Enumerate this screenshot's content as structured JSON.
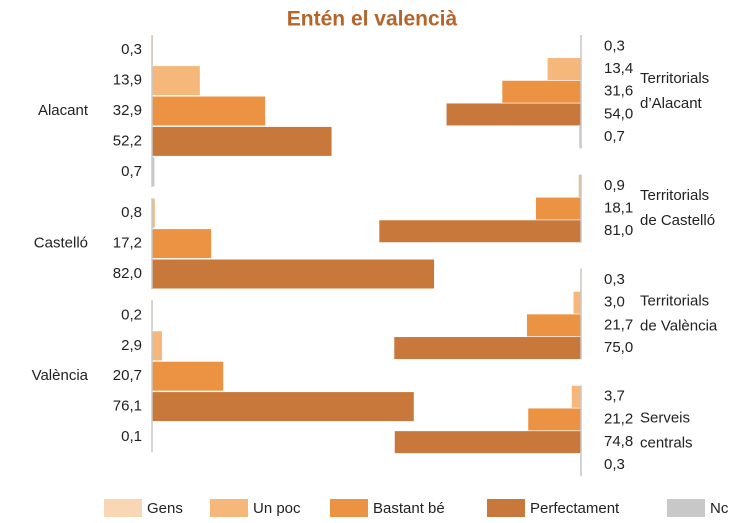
{
  "chart_data": [
    {
      "type": "bar",
      "title": "Entén el valencià",
      "categories": [
        [
          "Alacant"
        ],
        [
          "Castelló"
        ],
        [
          "València"
        ]
      ],
      "series": [
        {
          "name": "Gens",
          "color": "#f9d6b4",
          "values": [
            0.3,
            null,
            0.2
          ],
          "value_labels": [
            "0,3",
            null,
            "0,2"
          ]
        },
        {
          "name": "Un poc",
          "color": "#f5b77a",
          "values": [
            13.9,
            0.8,
            2.9
          ],
          "value_labels": [
            "13,9",
            "0,8",
            "2,9"
          ]
        },
        {
          "name": "Bastant bé",
          "color": "#ec9343",
          "values": [
            32.9,
            17.2,
            20.7
          ],
          "value_labels": [
            "32,9",
            "17,2",
            "20,7"
          ]
        },
        {
          "name": "Perfectament",
          "color": "#c8783a",
          "values": [
            52.2,
            82.0,
            76.1
          ],
          "value_labels": [
            "52,2",
            "82,0",
            "76,1"
          ]
        },
        {
          "name": "Nc",
          "color": "#c8c8c8",
          "values": [
            0.7,
            null,
            0.1
          ],
          "value_labels": [
            "0,7",
            null,
            "0,1"
          ]
        }
      ]
    },
    {
      "type": "bar",
      "categories": [
        [
          "Territorials",
          "d’Alacant"
        ],
        [
          "Territorials",
          "de Castelló"
        ],
        [
          "Territorials",
          "de València"
        ],
        [
          "Serveis",
          "centrals"
        ]
      ],
      "series": [
        {
          "color": "#f9d6b4",
          "values": [
            0.3,
            null,
            0.3,
            null
          ],
          "value_labels": [
            "0,3",
            null,
            "0,3",
            null
          ]
        },
        {
          "color": "#f5b77a",
          "values": [
            13.4,
            0.9,
            3.0,
            3.7
          ],
          "value_labels": [
            "13,4",
            "0,9",
            "3,0",
            "3,7"
          ]
        },
        {
          "color": "#ec9343",
          "values": [
            31.6,
            18.1,
            21.7,
            21.2
          ],
          "value_labels": [
            "31,6",
            "18,1",
            "21,7",
            "21,2"
          ]
        },
        {
          "color": "#c8783a",
          "values": [
            54.0,
            81.0,
            75.0,
            74.8
          ],
          "value_labels": [
            "54,0",
            "81,0",
            "75,0",
            "74,8"
          ]
        },
        {
          "color": "#c8c8c8",
          "values": [
            0.7,
            null,
            null,
            0.3
          ],
          "value_labels": [
            "0,7",
            null,
            null,
            "0,3"
          ]
        }
      ]
    }
  ]
}
